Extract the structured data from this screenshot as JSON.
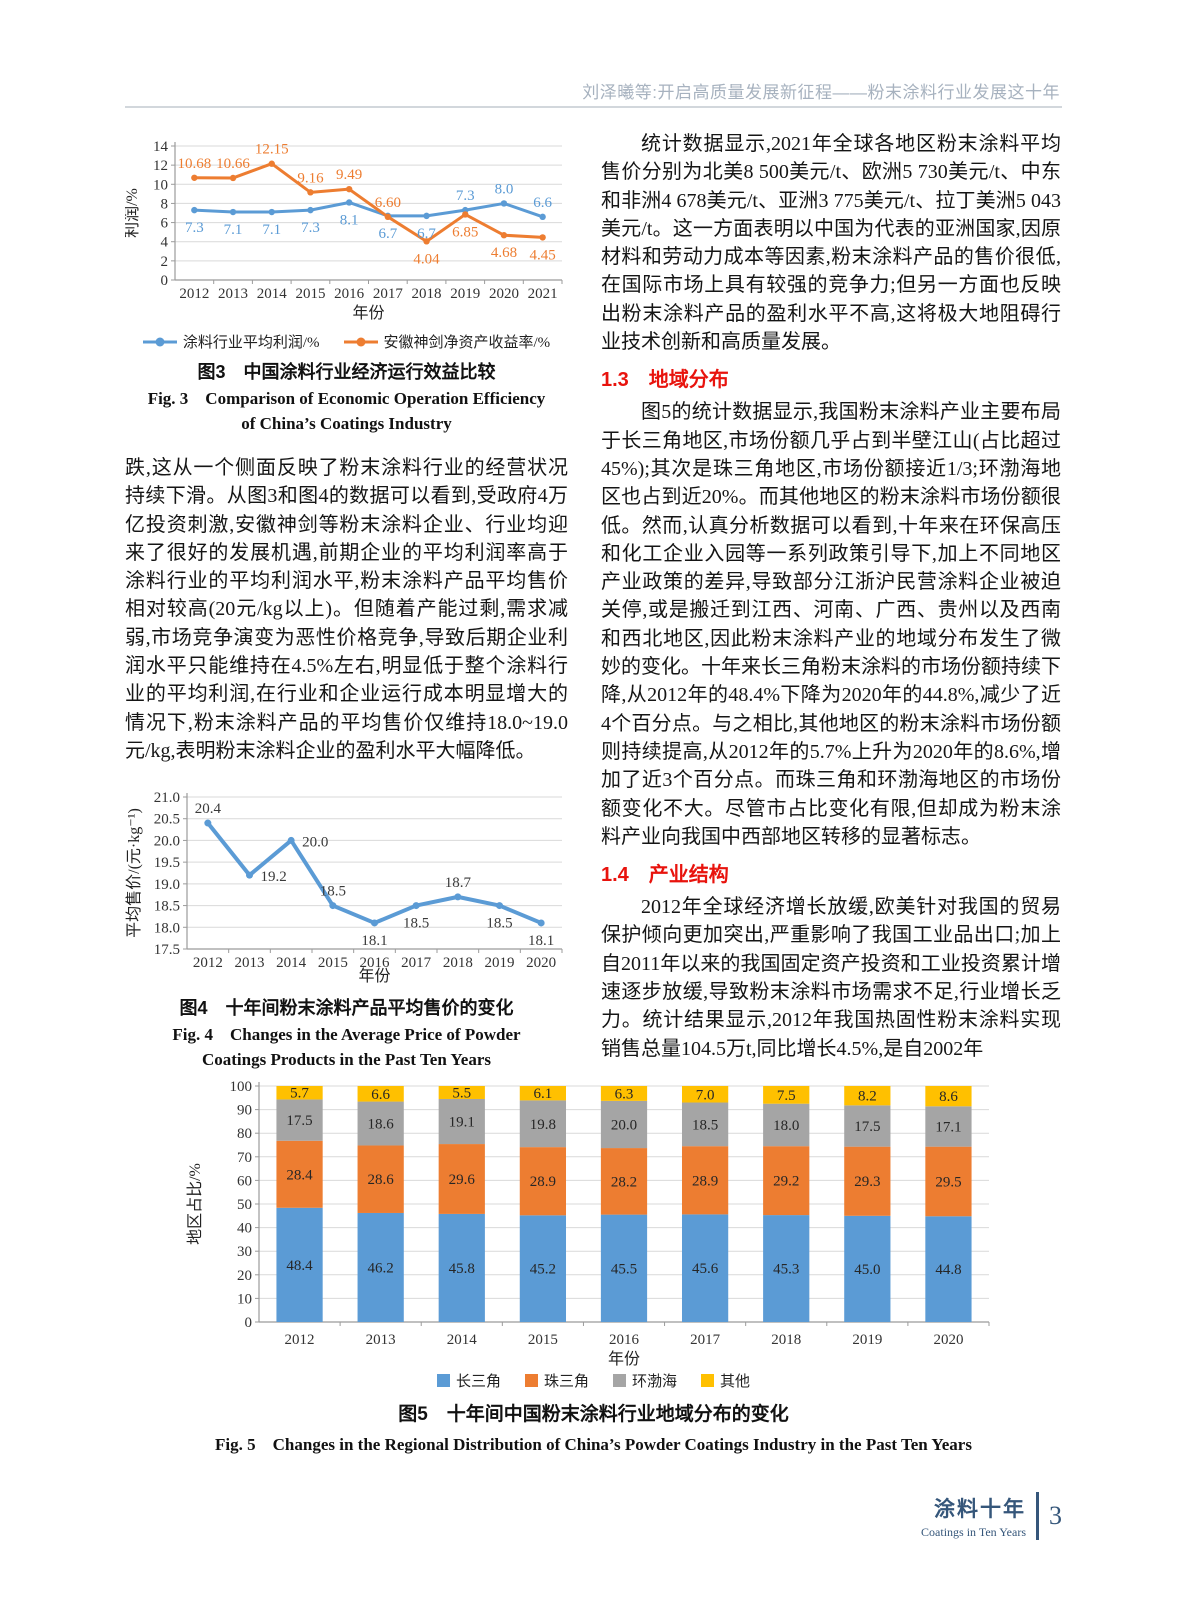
{
  "page": {
    "header": "刘泽曦等:开启高质量发展新征程——粉末涂料行业发展这十年",
    "footer": {
      "journal_cn": "涂料十年",
      "journal_en": "Coatings in Ten Years",
      "page_number": "3"
    }
  },
  "colors": {
    "blue": "#5B9BD5",
    "orange": "#ED7D31",
    "gray": "#A5A5A5",
    "yellow": "#FFC000",
    "red_heading": "#E8130D",
    "header_text": "#A7B2BF",
    "footer_blue": "#35567A"
  },
  "left_column": {
    "fig3_caption_cn": "图3　中国涂料行业经济运行效益比较",
    "fig3_caption_en": "Fig. 3　Comparison of Economic Operation Efficiency of China’s Coatings Industry",
    "paragraph": "跌,这从一个侧面反映了粉末涂料行业的经营状况持续下滑。从图3和图4的数据可以看到,受政府4万亿投资刺激,安徽神剑等粉末涂料企业、行业均迎来了很好的发展机遇,前期企业的平均利润率高于涂料行业的平均利润水平,粉末涂料产品平均售价相对较高(20元/kg以上)。但随着产能过剩,需求减弱,市场竞争演变为恶性价格竞争,导致后期企业利润水平只能维持在4.5%左右,明显低于整个涂料行业的平均利润,在行业和企业运行成本明显增大的情况下,粉末涂料产品的平均售价仅维持18.0~19.0元/kg,表明粉末涂料企业的盈利水平大幅降低。",
    "fig4_caption_cn": "图4　十年间粉末涂料产品平均售价的变化",
    "fig4_caption_en": "Fig. 4　Changes in the Average Price of Powder Coatings Products in the Past Ten Years"
  },
  "right_column": {
    "para1": "统计数据显示,2021年全球各地区粉末涂料平均售价分别为北美8 500美元/t、欧洲5 730美元/t、中东和非洲4 678美元/t、亚洲3 775美元/t、拉丁美洲5 043美元/t。这一方面表明以中国为代表的亚洲国家,因原材料和劳动力成本等因素,粉末涂料产品的售价很低,在国际市场上具有较强的竞争力;但另一方面也反映出粉末涂料产品的盈利水平不高,这将极大地阻碍行业技术创新和高质量发展。",
    "heading_1_3": "1.3　地域分布",
    "para2": "图5的统计数据显示,我国粉末涂料产业主要布局于长三角地区,市场份额几乎占到半壁江山(占比超过45%);其次是珠三角地区,市场份额接近1/3;环渤海地区也占到近20%。而其他地区的粉末涂料市场份额很低。然而,认真分析数据可以看到,十年来在环保高压和化工企业入园等一系列政策引导下,加上不同地区产业政策的差异,导致部分江浙沪民营涂料企业被迫关停,或是搬迁到江西、河南、广西、贵州以及西南和西北地区,因此粉末涂料产业的地域分布发生了微妙的变化。十年来长三角粉末涂料的市场份额持续下降,从2012年的48.4%下降为2020年的44.8%,减少了近4个百分点。与之相比,其他地区的粉末涂料市场份额则持续提高,从2012年的5.7%上升为2020年的8.6%,增加了近3个百分点。而珠三角和环渤海地区的市场份额变化不大。尽管市占比变化有限,但却成为粉末涂料产业向我国中西部地区转移的显著标志。",
    "heading_1_4": "1.4　产业结构",
    "para3": "2012年全球经济增长放缓,欧美针对我国的贸易保护倾向更加突出,严重影响了我国工业品出口;加上自2011年以来的我国固定资产投资和工业投资累计增速逐步放缓,导致粉末涂料市场需求不足,行业增长乏力。统计结果显示,2012年我国热固性粉末涂料实现销售总量104.5万t,同比增长4.5%,是自2002年"
  },
  "bottom_figure": {
    "caption_cn": "图5　十年间中国粉末涂料行业地域分布的变化",
    "caption_en": "Fig. 5　Changes in the Regional Distribution of China’s Powder Coatings Industry in the Past Ten Years"
  },
  "chart_data": [
    {
      "id": "fig3",
      "type": "line",
      "title": "中国涂料行业经济运行效益比较",
      "categories": [
        "2012",
        "2013",
        "2014",
        "2015",
        "2016",
        "2017",
        "2018",
        "2019",
        "2020",
        "2021"
      ],
      "series": [
        {
          "name": "涂料行业平均利润/%",
          "color_key": "blue",
          "values": [
            7.3,
            7.1,
            7.1,
            7.3,
            8.1,
            6.7,
            6.7,
            7.3,
            8.0,
            6.6
          ],
          "labels": [
            "7.3",
            "7.1",
            "7.1",
            "7.3",
            "8.1",
            "6.7",
            "6.7",
            "7.3",
            "8.0",
            "6.6"
          ],
          "label_side": [
            "below",
            "below",
            "below",
            "below",
            "below",
            "below",
            "below",
            "above",
            "above",
            "above"
          ]
        },
        {
          "name": "安徽神剑净资产收益率/%",
          "color_key": "orange",
          "values": [
            10.68,
            10.66,
            12.15,
            9.16,
            9.49,
            6.6,
            4.04,
            6.85,
            4.68,
            4.45
          ],
          "labels": [
            "10.68",
            "10.66",
            "12.15",
            "9.16",
            "9.49",
            "6.60",
            "4.04",
            "6.85",
            "4.68",
            "4.45"
          ],
          "label_side": [
            "above",
            "above",
            "above",
            "above",
            "above",
            "above",
            "below",
            "below",
            "below",
            "below"
          ]
        }
      ],
      "xlabel": "年份",
      "ylabel": "利润/%",
      "ylim": [
        0,
        14
      ],
      "ytick_step": 2,
      "grid": true,
      "legend_position": "bottom"
    },
    {
      "id": "fig4",
      "type": "line",
      "title": "十年间粉末涂料产品平均售价的变化",
      "categories": [
        "2012",
        "2013",
        "2014",
        "2015",
        "2016",
        "2017",
        "2018",
        "2019",
        "2020"
      ],
      "series": [
        {
          "name": "平均售价",
          "color_key": "blue",
          "values": [
            20.4,
            19.2,
            20.0,
            18.5,
            18.1,
            18.5,
            18.7,
            18.5,
            18.1
          ],
          "labels": [
            "20.4",
            "19.2",
            "20.0",
            "18.5",
            "18.1",
            "18.5",
            "18.7",
            "18.5",
            "18.1"
          ],
          "label_side": [
            "above",
            "right",
            "right",
            "above",
            "below",
            "below",
            "above",
            "below",
            "below"
          ]
        }
      ],
      "xlabel": "年份",
      "ylabel": "平均售价/(元·kg⁻¹)",
      "ylim": [
        17.5,
        21.0
      ],
      "ytick_step": 0.5,
      "grid": true,
      "legend_position": "none"
    },
    {
      "id": "fig5",
      "type": "bar",
      "title": "十年间中国粉末涂料行业地域分布的变化",
      "categories": [
        "2012",
        "2013",
        "2014",
        "2015",
        "2016",
        "2017",
        "2018",
        "2019",
        "2020"
      ],
      "series": [
        {
          "name": "长三角",
          "color_key": "blue",
          "values": [
            48.4,
            46.2,
            45.8,
            45.2,
            45.5,
            45.6,
            45.3,
            45.0,
            44.8
          ]
        },
        {
          "name": "珠三角",
          "color_key": "orange",
          "values": [
            28.4,
            28.6,
            29.6,
            28.9,
            28.2,
            28.9,
            29.2,
            29.3,
            29.5
          ]
        },
        {
          "name": "环渤海",
          "color_key": "gray",
          "values": [
            17.5,
            18.6,
            19.1,
            19.8,
            20.0,
            18.5,
            18.0,
            17.5,
            17.1
          ]
        },
        {
          "name": "其他",
          "color_key": "yellow",
          "values": [
            5.7,
            6.6,
            5.5,
            6.1,
            6.3,
            7.0,
            7.5,
            8.2,
            8.6
          ]
        }
      ],
      "xlabel": "年份",
      "ylabel": "地区占比/%",
      "ylim": [
        0,
        100
      ],
      "ytick_step": 10,
      "stacked": true,
      "grid": true,
      "legend_position": "bottom"
    }
  ]
}
